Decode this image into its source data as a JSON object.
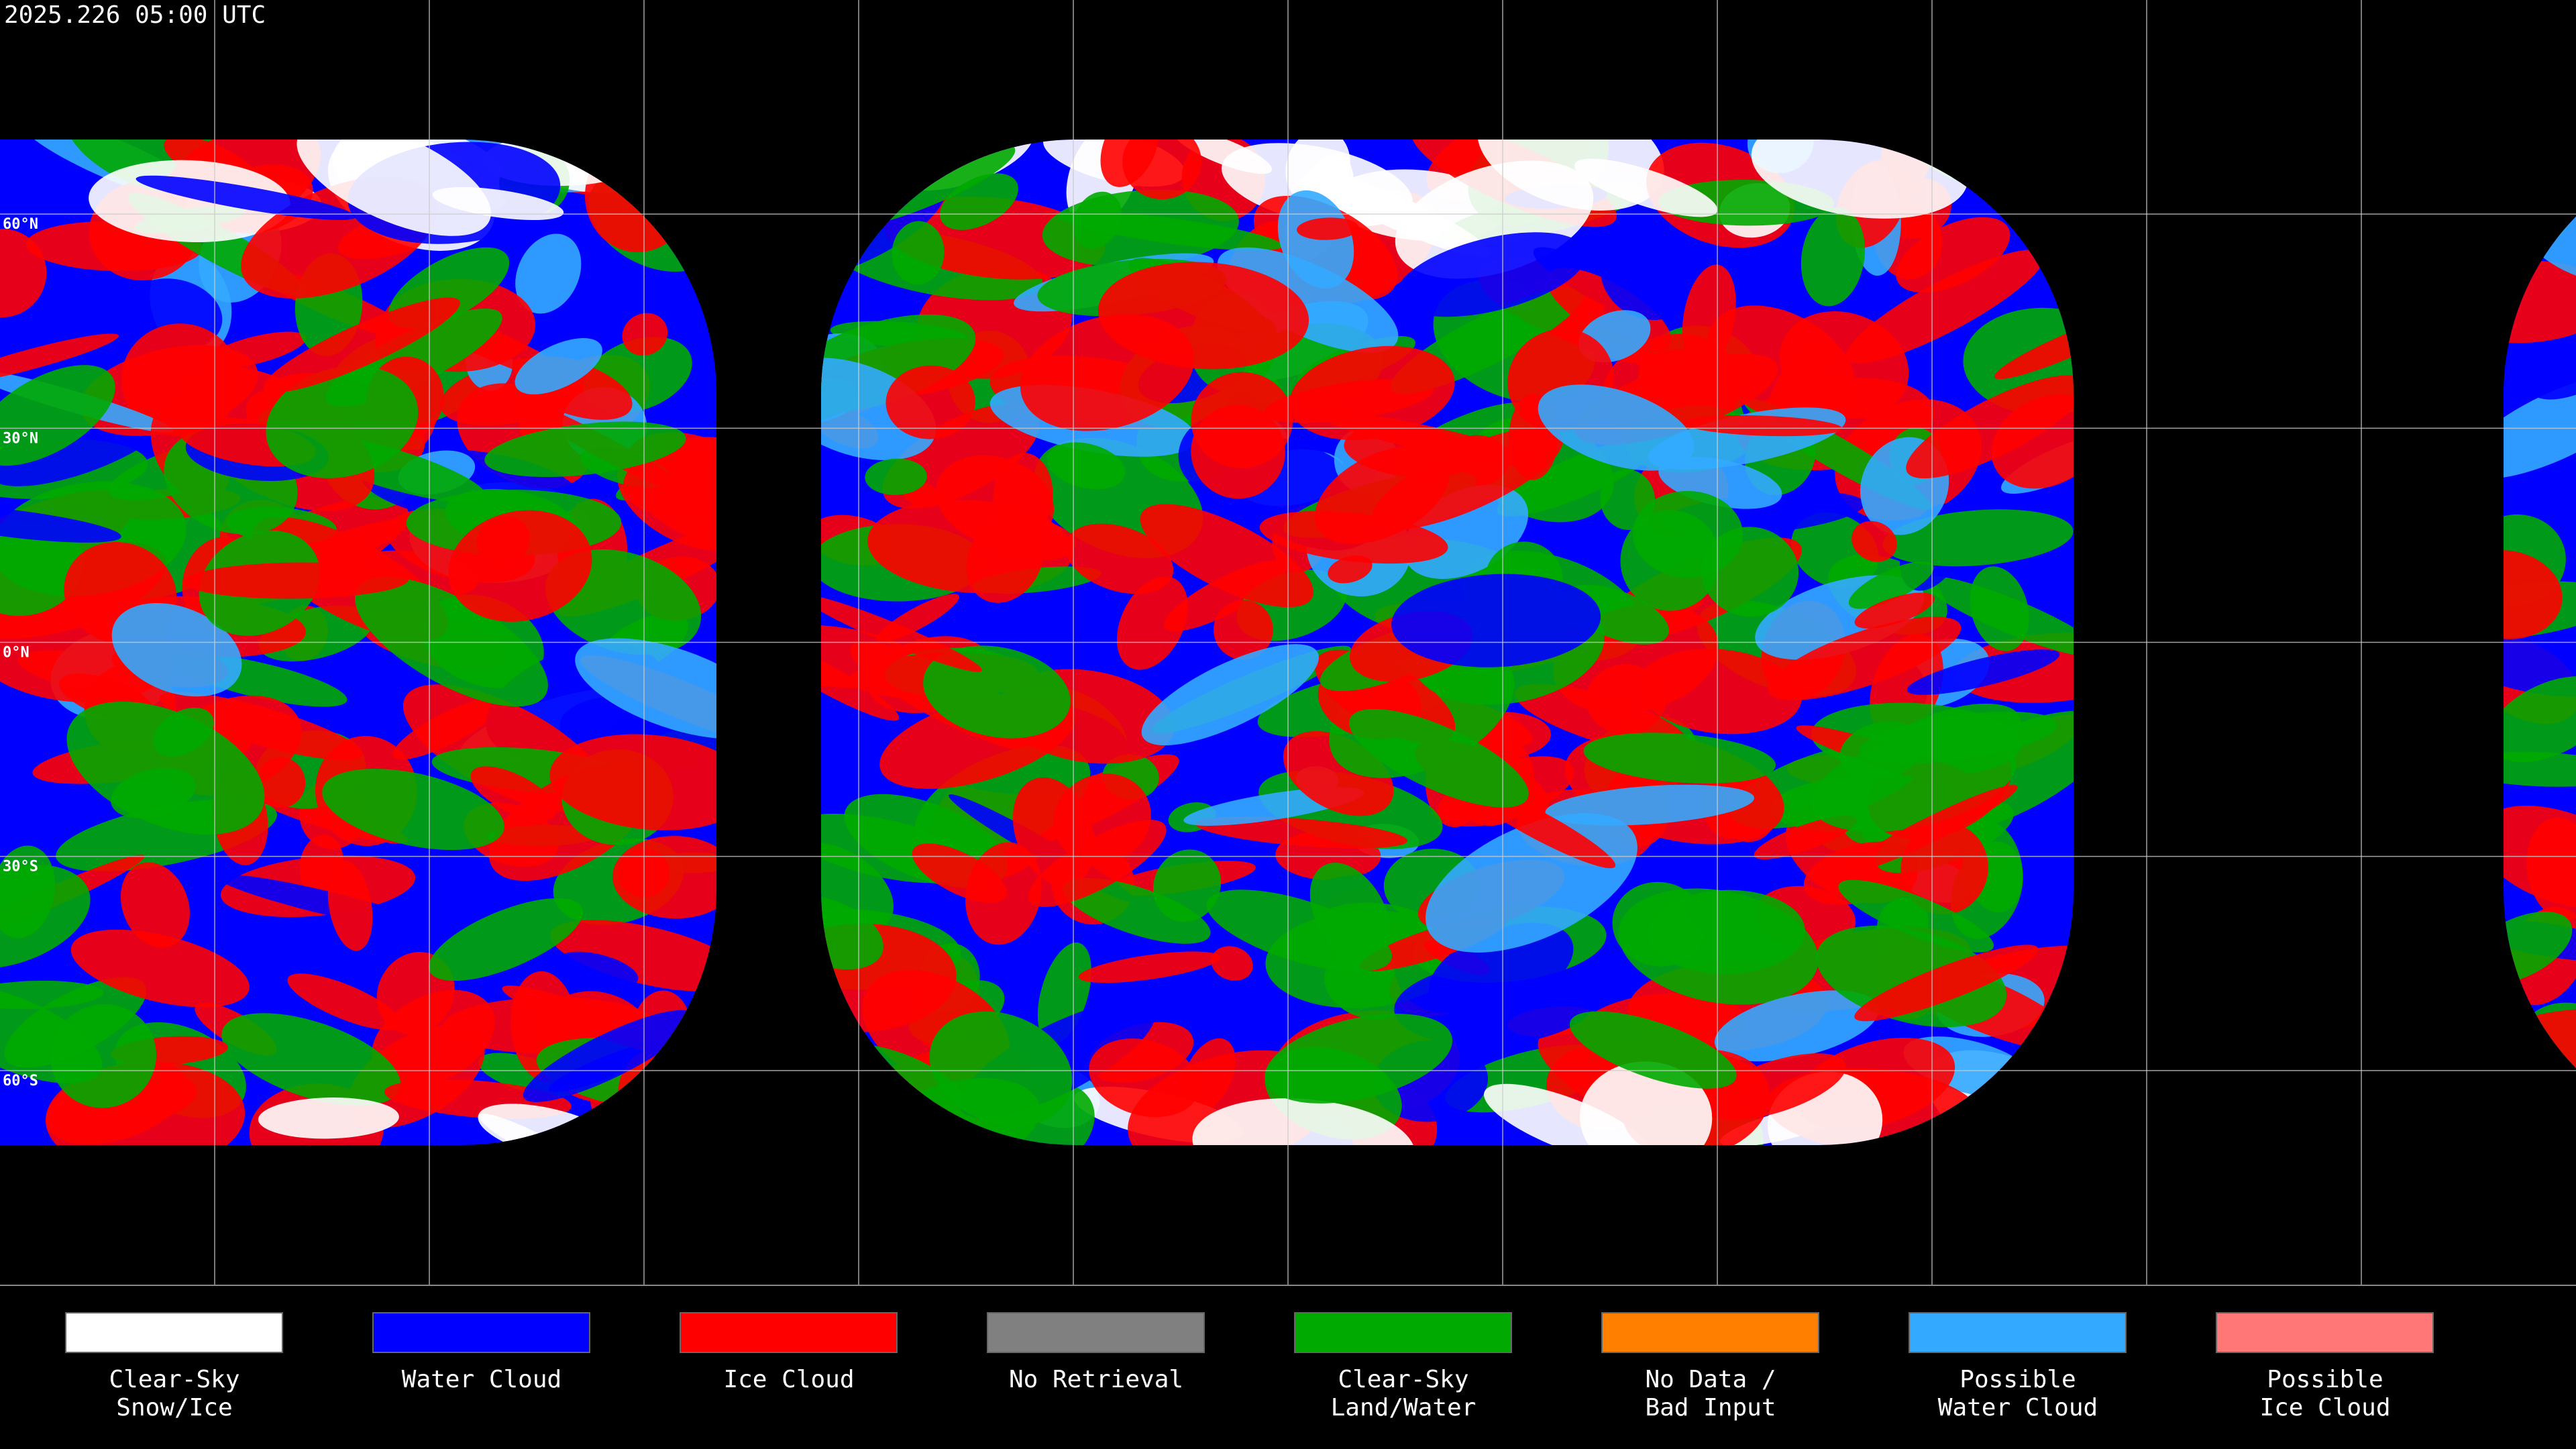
{
  "header": {
    "title": "2025.226 05:00 UTC"
  },
  "lat_labels": [
    "60°N",
    "30°N",
    "0°N",
    "30°S",
    "60°S"
  ],
  "legend": {
    "items": [
      {
        "lines": [
          "Clear-Sky",
          "Snow/Ice"
        ],
        "color": "#ffffff"
      },
      {
        "lines": [
          "Water Cloud"
        ],
        "color": "#0000ff"
      },
      {
        "lines": [
          "Ice Cloud"
        ],
        "color": "#ff0000"
      },
      {
        "lines": [
          "No Retrieval"
        ],
        "color": "#808080"
      },
      {
        "lines": [
          "Clear-Sky",
          "Land/Water"
        ],
        "color": "#00aa00"
      },
      {
        "lines": [
          "No Data /",
          "Bad Input"
        ],
        "color": "#ff8000"
      },
      {
        "lines": [
          "Possible",
          "Water Cloud"
        ],
        "color": "#33aaff"
      },
      {
        "lines": [
          "Possible",
          "Ice Cloud"
        ],
        "color": "#ff7777"
      }
    ]
  }
}
